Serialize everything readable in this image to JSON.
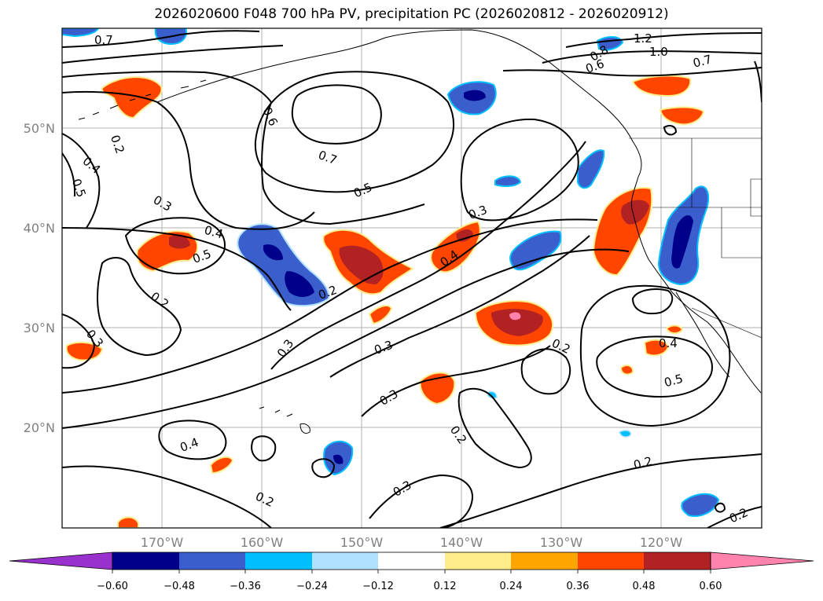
{
  "title": "2026020600 F048 700 hPa PV, precipitation PC (2026020812 - 2026020912)",
  "map": {
    "region": "Northeast Pacific",
    "lon_ticks": [
      "170°W",
      "160°W",
      "150°W",
      "140°W",
      "130°W",
      "120°W"
    ],
    "lat_ticks": [
      "50°N",
      "40°N",
      "30°N",
      "20°N"
    ]
  },
  "contour_labels": [
    "0.7",
    "1.2",
    "1.0",
    "0.8",
    "0.6",
    "0.7",
    "0.6",
    "0.2",
    "0.4",
    "0.5",
    "0.7",
    "0.5",
    "0.3",
    "0.3",
    "0.4",
    "0.5",
    "0.4",
    "0.2",
    "0.2",
    "0.3",
    "0.3",
    "0.3",
    "0.2",
    "0.3",
    "0.4",
    "0.5",
    "0.2",
    "0.4",
    "0.2",
    "0.3",
    "0.2",
    "0.2"
  ],
  "colorbar": {
    "colors": [
      "#9932cc",
      "#00008b",
      "#3a5fcd",
      "#00bfff",
      "#b0e2ff",
      "#ffffff",
      "#ffec8b",
      "#ffa500",
      "#ff4500",
      "#b22222",
      "#ff83ac"
    ],
    "tick_labels": [
      "−0.60",
      "−0.48",
      "−0.36",
      "−0.24",
      "−0.12",
      "0.12",
      "0.24",
      "0.36",
      "0.48",
      "0.60"
    ]
  }
}
